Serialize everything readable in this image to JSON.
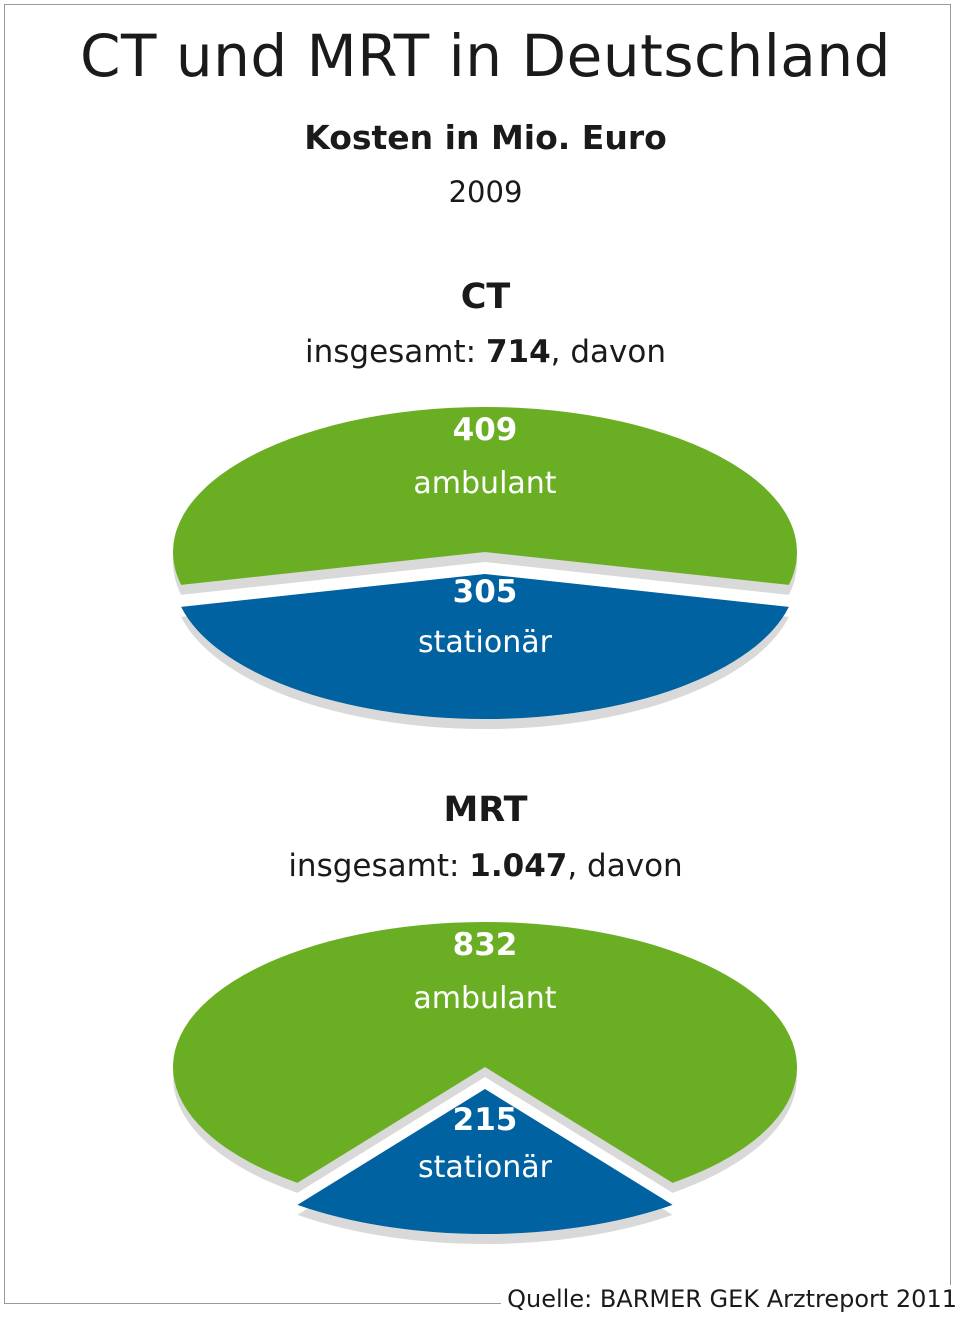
{
  "title": "CT und MRT in Deutschland",
  "subtitle": "Kosten in Mio. Euro",
  "year": "2009",
  "source": "Quelle: BARMER GEK Arztreport 2011",
  "colors": {
    "ambulant": "#6aaf23",
    "stationaer": "#0062a1",
    "edge": "#d9d9d9"
  },
  "chart_data": [
    {
      "type": "pie",
      "title": "CT",
      "total_prefix": "insgesamt: ",
      "total": "714",
      "total_suffix": ", davon",
      "slices": [
        {
          "label": "ambulant",
          "value": 409,
          "value_text": "409"
        },
        {
          "label": "stationär",
          "value": 305,
          "value_text": "305"
        }
      ]
    },
    {
      "type": "pie",
      "title": "MRT",
      "total_prefix": "insgesamt: ",
      "total": "1.047",
      "total_suffix": ", davon",
      "slices": [
        {
          "label": "ambulant",
          "value": 832,
          "value_text": "832"
        },
        {
          "label": "stationär",
          "value": 215,
          "value_text": "215"
        }
      ]
    }
  ]
}
